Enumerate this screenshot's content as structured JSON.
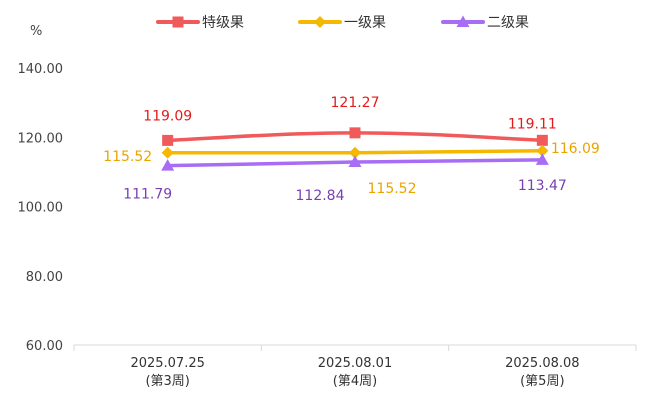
{
  "chart_data": {
    "type": "line",
    "y_unit_label": "%",
    "categories": [
      [
        "2025.07.25",
        "(第3周)"
      ],
      [
        "2025.08.01",
        "(第4周)"
      ],
      [
        "2025.08.08",
        "(第5周)"
      ]
    ],
    "yticks": [
      "60.00",
      "80.00",
      "100.00",
      "120.00",
      "140.00"
    ],
    "ylim": [
      60,
      140
    ],
    "grid": false,
    "legend_position": "top-center",
    "series": [
      {
        "name": "特级果",
        "color": "#f05a5a",
        "label_color": "#e21b1b",
        "marker": "square",
        "values": [
          119.09,
          121.27,
          119.11
        ],
        "labels": [
          "119.09",
          "121.27",
          "119.11"
        ]
      },
      {
        "name": "一级果",
        "color": "#f5b800",
        "label_color": "#eaa400",
        "marker": "diamond",
        "values": [
          115.52,
          115.52,
          116.09
        ],
        "labels": [
          "115.52",
          "115.52",
          "116.09"
        ]
      },
      {
        "name": "二级果",
        "color": "#a86df5",
        "label_color": "#7a3fb3",
        "marker": "triangle",
        "values": [
          111.79,
          112.84,
          113.47
        ],
        "labels": [
          "111.79",
          "112.84",
          "113.47"
        ]
      }
    ]
  }
}
